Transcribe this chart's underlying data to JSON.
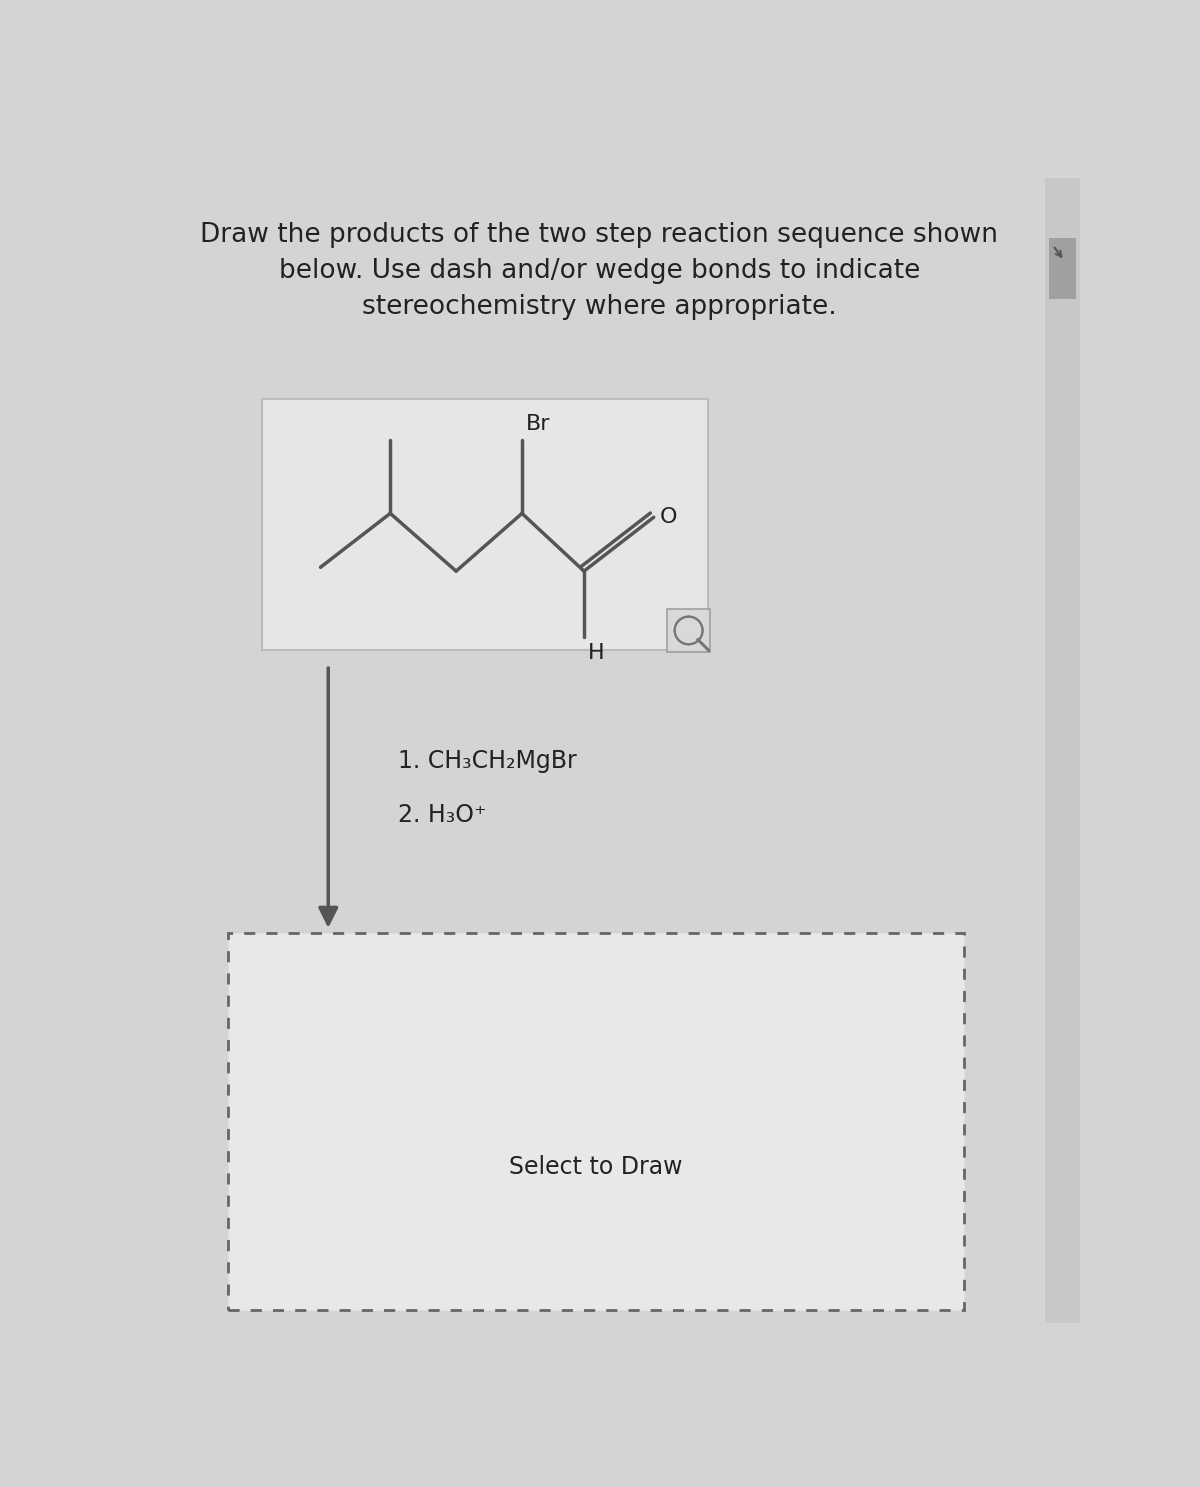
{
  "title_text": "Draw the products of the two step reaction sequence shown\nbelow. Use dash and/or wedge bonds to indicate\nstereochemistry where appropriate.",
  "title_fontsize": 19,
  "bg_color": "#d4d4d4",
  "box1_facecolor": "#e6e6e6",
  "box1_edgecolor": "#bbbbbb",
  "box2_facecolor": "#e8e8e8",
  "line_color": "#555555",
  "text_color": "#222222",
  "step1_text": "1. CH₃CH₂MgBr",
  "step2_text": "2. H₃O⁺",
  "select_text": "Select to Draw",
  "Br_label": "Br",
  "H_label": "H",
  "O_label": "O",
  "scrollbar_color": "#b0b0b0",
  "arrow_color": "#555555"
}
